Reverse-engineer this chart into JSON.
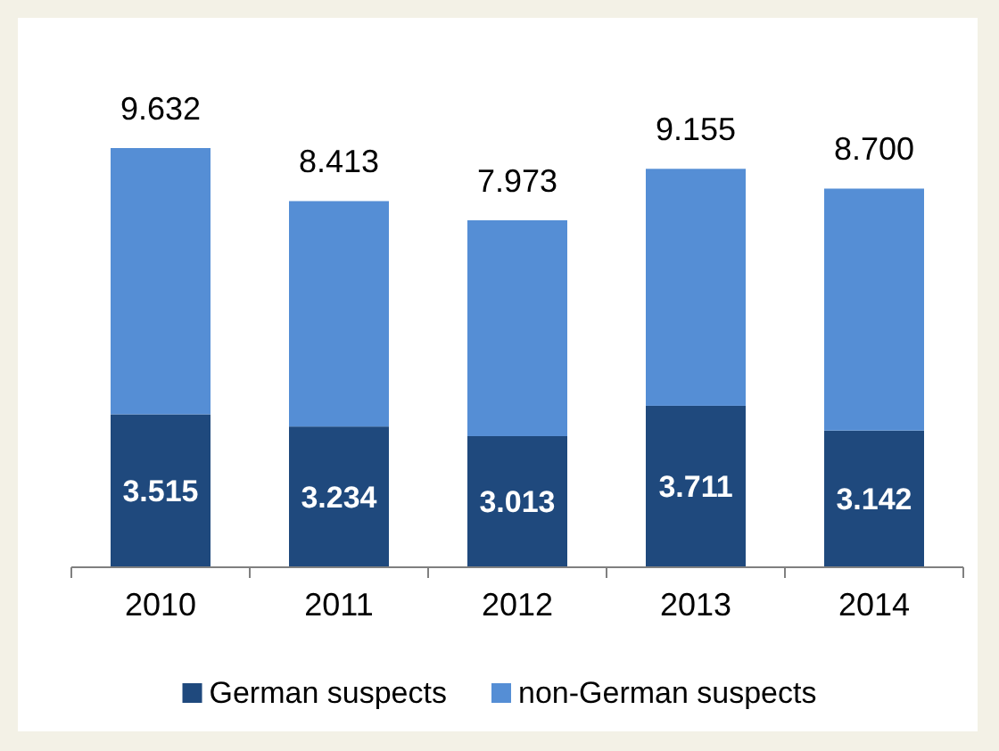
{
  "chart_data": {
    "type": "bar",
    "stacked": true,
    "categories": [
      "2010",
      "2011",
      "2012",
      "2013",
      "2014"
    ],
    "series": [
      {
        "name": "German suspects",
        "color": "#1f497d",
        "values": [
          3515,
          3234,
          3013,
          3711,
          3142
        ],
        "value_labels": [
          "3.515",
          "3.234",
          "3.013",
          "3.711",
          "3.142"
        ]
      },
      {
        "name": "non-German suspects",
        "color": "#558ed5",
        "values": [
          6117,
          5179,
          4960,
          5444,
          5558
        ]
      }
    ],
    "totals": [
      "9.632",
      "8.413",
      "7.973",
      "9.155",
      "8.700"
    ],
    "legend": "bottom"
  }
}
